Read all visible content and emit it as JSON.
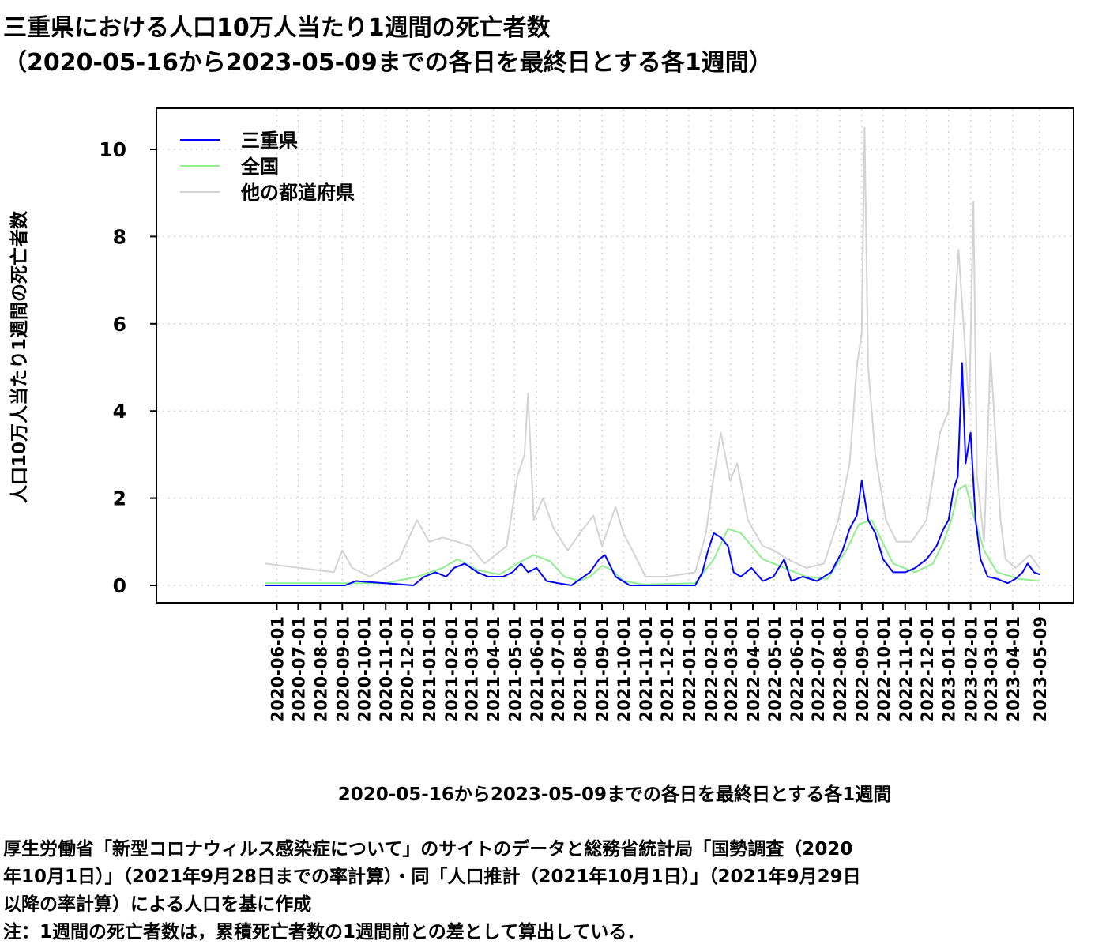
{
  "title": {
    "line1": "三重県における人口10万人当たり1週間の死亡者数",
    "line2": "（2020-05-16から2023-05-09までの各日を最終日とする各1週間）"
  },
  "notes": {
    "line1": "厚生労働省「新型コロナウィルス感染症について」のサイトのデータと総務省統計局「国勢調査（2020",
    "line2": "年10月1日）」（2021年9月28日までの率計算）・同「人口推計（2021年10月1日）」（2021年9月29日",
    "line3": "以降の率計算）による人口を基に作成",
    "line4": "注：1週間の死亡者数は，累積死亡者数の1週間前との差として算出している．"
  },
  "colors": {
    "mie": "#0000ff",
    "national": "#90ee90",
    "other": "#d3d3d3",
    "grid": "#d3d3d3"
  },
  "chart_data": {
    "type": "line",
    "xlabel": "2020-05-16から2023-05-09までの各日を最終日とする各1週間",
    "ylabel": "人口10万人当たり1週間の死亡者数",
    "x_range": [
      "2020-05-16",
      "2023-05-09"
    ],
    "ylim": [
      0,
      10.8
    ],
    "y_ticks": [
      0,
      2,
      4,
      6,
      8,
      10
    ],
    "x_ticks": [
      "2020-06-01",
      "2020-07-01",
      "2020-08-01",
      "2020-09-01",
      "2020-10-01",
      "2020-11-01",
      "2020-12-01",
      "2021-01-01",
      "2021-02-01",
      "2021-03-01",
      "2021-04-01",
      "2021-05-01",
      "2021-06-01",
      "2021-07-01",
      "2021-08-01",
      "2021-09-01",
      "2021-10-01",
      "2021-11-01",
      "2021-12-01",
      "2022-01-01",
      "2022-02-01",
      "2022-03-01",
      "2022-04-01",
      "2022-05-01",
      "2022-06-01",
      "2022-07-01",
      "2022-08-01",
      "2022-09-01",
      "2022-10-01",
      "2022-11-01",
      "2022-12-01",
      "2023-01-01",
      "2023-02-01",
      "2023-03-01",
      "2023-04-01",
      "2023-05-09"
    ],
    "grid": true,
    "legend_position": "top-left",
    "series": [
      {
        "name": "三重県",
        "color": "#0000ff",
        "x": [
          "2020-05-16",
          "2020-09-05",
          "2020-09-20",
          "2020-12-10",
          "2020-12-25",
          "2021-01-10",
          "2021-01-25",
          "2021-02-05",
          "2021-02-20",
          "2021-03-10",
          "2021-03-25",
          "2021-04-15",
          "2021-04-28",
          "2021-05-10",
          "2021-05-20",
          "2021-06-01",
          "2021-06-15",
          "2021-07-01",
          "2021-07-20",
          "2021-08-15",
          "2021-08-28",
          "2021-09-05",
          "2021-09-20",
          "2021-10-10",
          "2021-10-30",
          "2022-01-10",
          "2022-01-20",
          "2022-01-28",
          "2022-02-05",
          "2022-02-15",
          "2022-02-25",
          "2022-03-05",
          "2022-03-15",
          "2022-03-30",
          "2022-04-15",
          "2022-04-30",
          "2022-05-15",
          "2022-05-25",
          "2022-06-10",
          "2022-06-30",
          "2022-07-20",
          "2022-08-05",
          "2022-08-15",
          "2022-08-25",
          "2022-09-01",
          "2022-09-10",
          "2022-09-20",
          "2022-10-01",
          "2022-10-15",
          "2022-11-01",
          "2022-11-15",
          "2022-12-01",
          "2022-12-15",
          "2022-12-25",
          "2023-01-01",
          "2023-01-08",
          "2023-01-14",
          "2023-01-20",
          "2023-01-25",
          "2023-02-01",
          "2023-02-08",
          "2023-02-15",
          "2023-02-25",
          "2023-03-10",
          "2023-03-25",
          "2023-04-05",
          "2023-04-15",
          "2023-04-22",
          "2023-05-01",
          "2023-05-09"
        ],
        "y": [
          0,
          0,
          0.1,
          0,
          0.2,
          0.3,
          0.2,
          0.4,
          0.5,
          0.3,
          0.2,
          0.2,
          0.3,
          0.5,
          0.3,
          0.4,
          0.1,
          0.05,
          0,
          0.3,
          0.6,
          0.7,
          0.2,
          0,
          0,
          0,
          0.3,
          0.8,
          1.2,
          1.1,
          0.9,
          0.3,
          0.2,
          0.4,
          0.1,
          0.2,
          0.6,
          0.1,
          0.2,
          0.1,
          0.3,
          0.8,
          1.3,
          1.6,
          2.4,
          1.5,
          1.2,
          0.6,
          0.3,
          0.3,
          0.4,
          0.6,
          0.9,
          1.3,
          1.5,
          2.2,
          2.5,
          5.1,
          2.8,
          3.5,
          1.5,
          0.6,
          0.2,
          0.15,
          0.05,
          0.15,
          0.3,
          0.5,
          0.3,
          0.25
        ]
      },
      {
        "name": "全国",
        "color": "#90ee90",
        "x": [
          "2020-05-16",
          "2020-11-01",
          "2020-12-15",
          "2021-01-20",
          "2021-02-10",
          "2021-03-10",
          "2021-04-10",
          "2021-05-10",
          "2021-05-28",
          "2021-06-20",
          "2021-07-10",
          "2021-07-31",
          "2021-08-15",
          "2021-09-01",
          "2021-09-15",
          "2021-10-01",
          "2021-10-30",
          "2022-01-10",
          "2022-02-05",
          "2022-02-25",
          "2022-03-15",
          "2022-04-15",
          "2022-05-15",
          "2022-06-15",
          "2022-07-15",
          "2022-08-10",
          "2022-08-28",
          "2022-09-15",
          "2022-10-15",
          "2022-11-15",
          "2022-12-10",
          "2022-12-25",
          "2023-01-05",
          "2023-01-15",
          "2023-01-25",
          "2023-02-05",
          "2023-02-20",
          "2023-03-10",
          "2023-04-10",
          "2023-05-09"
        ],
        "y": [
          0.05,
          0.05,
          0.2,
          0.4,
          0.6,
          0.35,
          0.25,
          0.55,
          0.7,
          0.55,
          0.2,
          0.1,
          0.2,
          0.45,
          0.35,
          0.1,
          0.02,
          0.05,
          0.6,
          1.3,
          1.2,
          0.6,
          0.4,
          0.2,
          0.15,
          0.8,
          1.4,
          1.5,
          0.5,
          0.3,
          0.5,
          1.0,
          1.5,
          2.2,
          2.3,
          1.6,
          0.8,
          0.3,
          0.15,
          0.1
        ]
      },
      {
        "name": "他の都道府県",
        "color": "#d3d3d3",
        "x": [
          "2020-05-16",
          "2020-08-20",
          "2020-09-01",
          "2020-09-15",
          "2020-10-10",
          "2020-11-20",
          "2020-12-15",
          "2021-01-01",
          "2021-01-20",
          "2021-02-10",
          "2021-02-28",
          "2021-03-20",
          "2021-04-20",
          "2021-05-05",
          "2021-05-15",
          "2021-05-20",
          "2021-05-28",
          "2021-06-10",
          "2021-06-25",
          "2021-07-15",
          "2021-08-01",
          "2021-08-20",
          "2021-09-01",
          "2021-09-20",
          "2021-10-01",
          "2021-10-20",
          "2021-11-01",
          "2021-12-01",
          "2022-01-10",
          "2022-01-25",
          "2022-02-05",
          "2022-02-15",
          "2022-02-28",
          "2022-03-10",
          "2022-03-25",
          "2022-04-15",
          "2022-05-01",
          "2022-05-20",
          "2022-06-15",
          "2022-07-10",
          "2022-07-30",
          "2022-08-15",
          "2022-08-25",
          "2022-09-01",
          "2022-09-05",
          "2022-09-10",
          "2022-09-20",
          "2022-10-05",
          "2022-10-20",
          "2022-11-10",
          "2022-12-01",
          "2022-12-20",
          "2023-01-01",
          "2023-01-15",
          "2023-01-22",
          "2023-01-30",
          "2023-02-05",
          "2023-02-10",
          "2023-02-20",
          "2023-03-01",
          "2023-03-15",
          "2023-03-22",
          "2023-04-05",
          "2023-04-25",
          "2023-05-09"
        ],
        "y": [
          0.5,
          0.3,
          0.8,
          0.4,
          0.2,
          0.6,
          1.5,
          1.0,
          1.1,
          1.0,
          0.9,
          0.5,
          0.9,
          2.5,
          3.0,
          4.4,
          1.5,
          2.0,
          1.3,
          0.8,
          1.2,
          1.6,
          0.9,
          1.8,
          1.2,
          0.6,
          0.2,
          0.2,
          0.3,
          1.2,
          2.5,
          3.5,
          2.4,
          2.8,
          1.5,
          0.9,
          0.8,
          0.6,
          0.4,
          0.5,
          1.5,
          2.8,
          5.0,
          5.8,
          10.5,
          5.0,
          3.0,
          1.5,
          1.0,
          1.0,
          1.5,
          3.5,
          4.0,
          7.7,
          6.0,
          4.0,
          8.8,
          2.5,
          1.0,
          5.3,
          1.5,
          0.6,
          0.4,
          0.7,
          0.4
        ]
      }
    ]
  }
}
